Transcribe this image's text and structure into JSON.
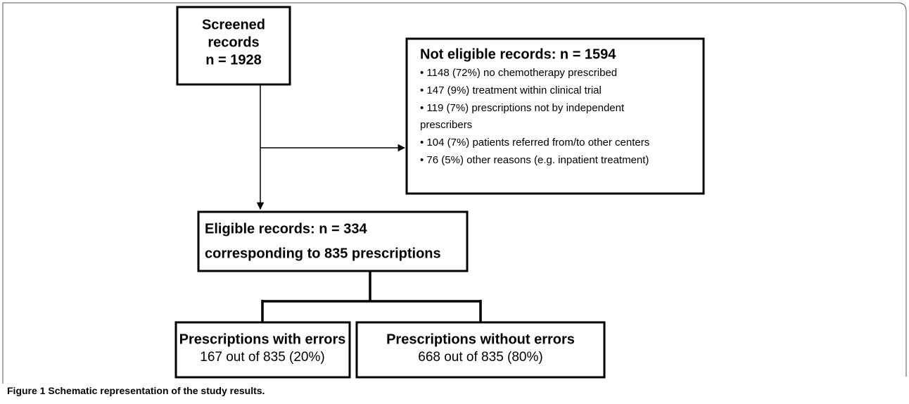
{
  "nodes": [
    {
      "lines": [
        "Screened",
        "records",
        "n = 1928"
      ]
    },
    {
      "title": "Not eligible records:  n = 1594",
      "items": [
        "• 1148 (72%) no chemotherapy prescribed",
        "• 147 (9%) treatment within clinical trial",
        "• 119 (7%) prescriptions not by independent",
        "prescribers",
        "• 104 (7%) patients referred from/to other centers",
        "• 76 (5%) other reasons (e.g. inpatient treatment)"
      ]
    },
    {
      "lines": [
        "Eligible records:  n = 334",
        "corresponding to 835 prescriptions"
      ]
    },
    {
      "title": "Prescriptions with errors",
      "detail": "167 out of 835 (20%)"
    },
    {
      "title": "Prescriptions without errors",
      "detail": "668 out of 835 (80%)"
    }
  ],
  "caption": {
    "label": "Figure 1",
    "text": "Schematic representation of the study results."
  }
}
